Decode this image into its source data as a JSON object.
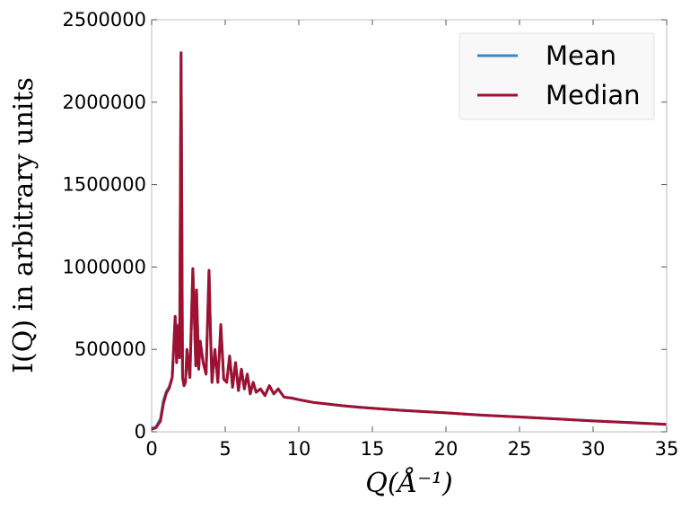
{
  "chart_data": {
    "type": "line",
    "title": "",
    "xlabel": "Q(Å⁻¹)",
    "ylabel": "I(Q) in arbitrary units",
    "xlim": [
      0,
      35
    ],
    "ylim": [
      0,
      2500000
    ],
    "xticks": [
      0,
      5,
      10,
      15,
      20,
      25,
      30,
      35
    ],
    "xtick_labels": [
      "0",
      "5",
      "10",
      "15",
      "20",
      "25",
      "30",
      "35"
    ],
    "yticks": [
      0,
      500000,
      1000000,
      1500000,
      2000000,
      2500000
    ],
    "ytick_labels": [
      "0",
      "500000",
      "1000000",
      "1500000",
      "2000000",
      "2500000"
    ],
    "grid": false,
    "legend_position": "top-right",
    "series": [
      {
        "name": "Mean",
        "color": "#3a87c0",
        "x": [
          0,
          0.3,
          0.6,
          0.8,
          1.0,
          1.2,
          1.4,
          1.6,
          1.7,
          1.8,
          1.9,
          2.0,
          2.1,
          2.2,
          2.3,
          2.4,
          2.6,
          2.8,
          3.0,
          3.05,
          3.2,
          3.3,
          3.5,
          3.7,
          3.9,
          4.0,
          4.1,
          4.3,
          4.5,
          4.7,
          4.9,
          5.1,
          5.3,
          5.5,
          5.7,
          5.9,
          6.1,
          6.3,
          6.5,
          6.7,
          6.9,
          7.1,
          7.4,
          7.7,
          8.0,
          8.3,
          8.6,
          9.0,
          9.5,
          10,
          11,
          12,
          13,
          14,
          15,
          17,
          20,
          22.5,
          25,
          27.5,
          30,
          32.5,
          35
        ],
        "y": [
          20000,
          30000,
          80000,
          190000,
          245000,
          275000,
          330000,
          700000,
          420000,
          650000,
          450000,
          2300000,
          330000,
          280000,
          300000,
          500000,
          330000,
          990000,
          400000,
          860000,
          380000,
          550000,
          420000,
          350000,
          980000,
          600000,
          300000,
          500000,
          300000,
          650000,
          320000,
          300000,
          460000,
          270000,
          420000,
          250000,
          380000,
          260000,
          350000,
          230000,
          300000,
          240000,
          260000,
          220000,
          280000,
          230000,
          260000,
          210000,
          205000,
          195000,
          178000,
          168000,
          158000,
          150000,
          143000,
          130000,
          115000,
          101000,
          90000,
          78000,
          66000,
          56000,
          45000
        ]
      },
      {
        "name": "Median",
        "color": "#a01030",
        "x": [
          0,
          0.3,
          0.6,
          0.8,
          1.0,
          1.2,
          1.4,
          1.6,
          1.7,
          1.8,
          1.9,
          2.0,
          2.1,
          2.2,
          2.3,
          2.4,
          2.6,
          2.8,
          3.0,
          3.05,
          3.2,
          3.3,
          3.5,
          3.7,
          3.9,
          4.0,
          4.1,
          4.3,
          4.5,
          4.7,
          4.9,
          5.1,
          5.3,
          5.5,
          5.7,
          5.9,
          6.1,
          6.3,
          6.5,
          6.7,
          6.9,
          7.1,
          7.4,
          7.7,
          8.0,
          8.3,
          8.6,
          9.0,
          9.5,
          10,
          11,
          12,
          13,
          14,
          15,
          17,
          20,
          22.5,
          25,
          27.5,
          30,
          32.5,
          35
        ],
        "y": [
          15000,
          25000,
          65000,
          170000,
          235000,
          265000,
          330000,
          700000,
          420000,
          640000,
          450000,
          2300000,
          330000,
          280000,
          300000,
          500000,
          330000,
          990000,
          400000,
          860000,
          380000,
          550000,
          420000,
          350000,
          980000,
          600000,
          300000,
          500000,
          300000,
          650000,
          320000,
          300000,
          460000,
          270000,
          420000,
          250000,
          380000,
          260000,
          350000,
          230000,
          300000,
          240000,
          260000,
          220000,
          280000,
          230000,
          260000,
          210000,
          205000,
          195000,
          178000,
          168000,
          158000,
          150000,
          143000,
          130000,
          115000,
          101000,
          90000,
          78000,
          66000,
          56000,
          45000
        ]
      }
    ]
  }
}
